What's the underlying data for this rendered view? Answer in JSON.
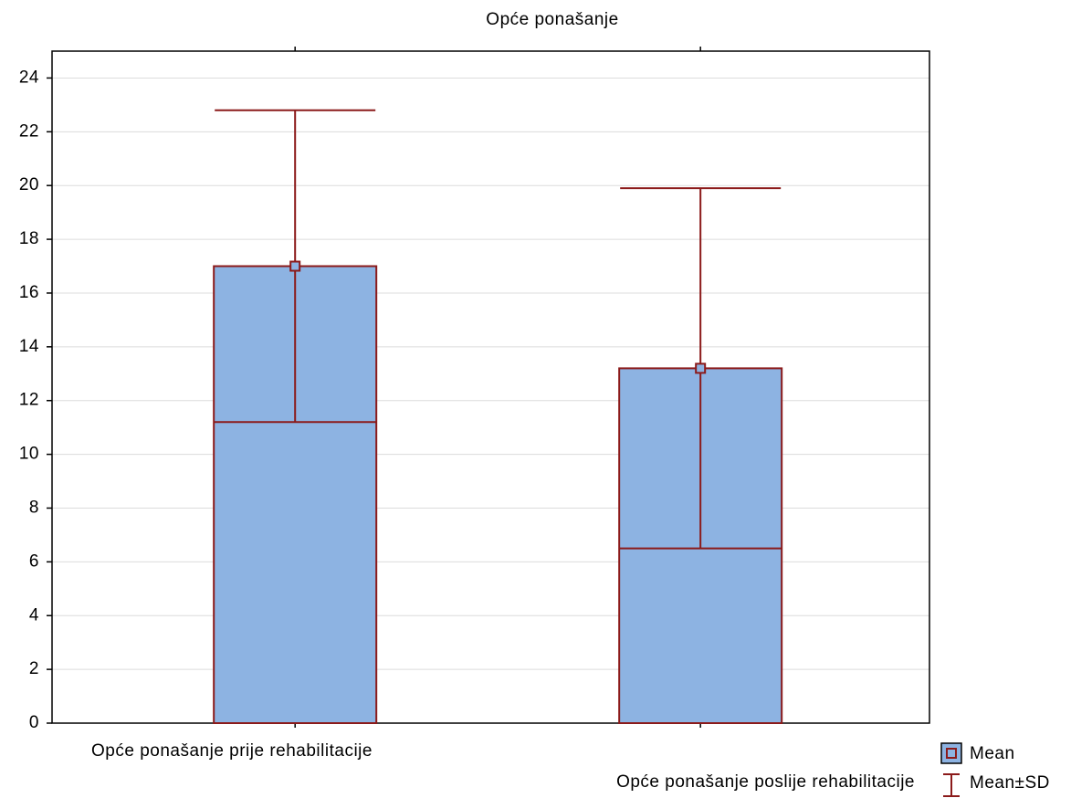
{
  "chart_data": {
    "type": "bar",
    "title": "Opće ponašanje",
    "categories": [
      "Opće ponašanje prije rehabilitacije",
      "Opće ponašanje poslije rehabilitacije"
    ],
    "series": [
      {
        "name": "Mean",
        "color": "#8db3e2",
        "values": [
          17.0,
          13.2
        ]
      },
      {
        "name": "Mean±SD",
        "color": "#8b1a1a",
        "values": [
          5.8,
          6.7
        ]
      }
    ],
    "ylim": [
      0,
      25
    ],
    "yticks": [
      0,
      2,
      4,
      6,
      8,
      10,
      12,
      14,
      16,
      18,
      20,
      22,
      24
    ],
    "grid": true
  }
}
